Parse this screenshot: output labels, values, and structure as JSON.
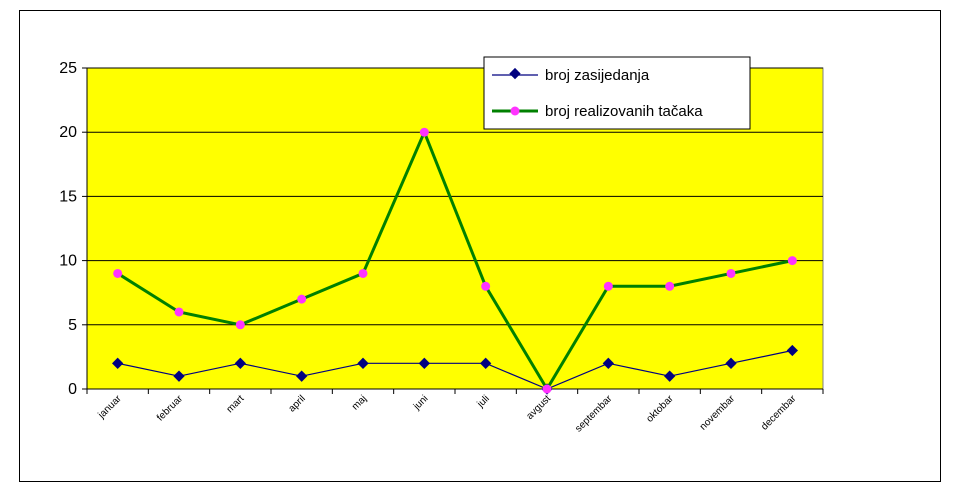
{
  "chart_data": {
    "type": "line",
    "categories": [
      "januar",
      "februar",
      "mart",
      "april",
      "maj",
      "juni",
      "juli",
      "avgust",
      "septembar",
      "oktobar",
      "novembar",
      "decembar"
    ],
    "series": [
      {
        "name": "broj zasijedanja",
        "values": [
          2,
          1,
          2,
          1,
          2,
          2,
          2,
          0,
          2,
          1,
          2,
          3
        ],
        "color": "#000080",
        "marker": "diamond",
        "marker_color": "#000080"
      },
      {
        "name": "broj realizovanih tačaka",
        "values": [
          9,
          6,
          5,
          7,
          9,
          20,
          8,
          0,
          8,
          8,
          9,
          10
        ],
        "color": "#008000",
        "marker": "circle",
        "marker_color": "#ff33ff"
      }
    ],
    "yticks": [
      "0",
      "5",
      "10",
      "15",
      "20",
      "25"
    ],
    "ylim": [
      0,
      25
    ],
    "grid": true,
    "legend_position": "top-right",
    "plot_background": "#ffff00"
  }
}
